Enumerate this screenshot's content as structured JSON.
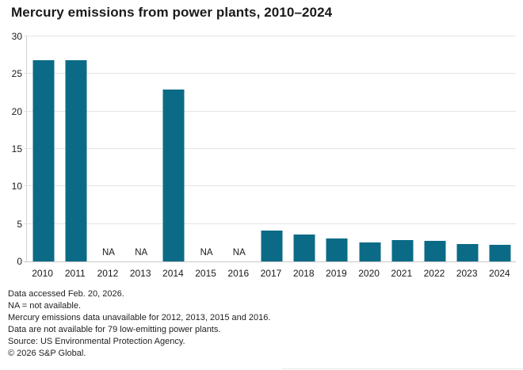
{
  "title": "Mercury emissions from power plants, 2010–2024",
  "colors": {
    "bar": "#0b6b86",
    "gridline": "#e4e4e4",
    "baseline": "#c9c9c9",
    "axis_line": "#d2d2d2",
    "text": "#1a1a1a"
  },
  "chart_data": {
    "type": "bar",
    "title": "Mercury emissions from power plants, 2010–2024",
    "categories": [
      "2010",
      "2011",
      "2012",
      "2013",
      "2014",
      "2015",
      "2016",
      "2017",
      "2018",
      "2019",
      "2020",
      "2021",
      "2022",
      "2023",
      "2024"
    ],
    "values": [
      26.8,
      26.8,
      null,
      null,
      22.9,
      null,
      null,
      4.1,
      3.6,
      3.1,
      2.5,
      2.9,
      2.8,
      2.3,
      2.2
    ],
    "na_label": "NA",
    "na_years": [
      "2012",
      "2013",
      "2015",
      "2016"
    ],
    "xlabel": "",
    "ylabel": "",
    "ylim": [
      0,
      30
    ],
    "yticks": [
      0,
      5,
      10,
      15,
      20,
      25,
      30
    ],
    "grid": true,
    "legend_position": "none"
  },
  "footnotes": [
    "Data accessed Feb. 20, 2026.",
    "NA = not available.",
    "Mercury emissions data unavailable for 2012, 2013, 2015 and 2016.",
    "Data are not available for 79 low-emitting power plants.",
    "Source: US Environmental Protection Agency.",
    "© 2026 S&P Global."
  ]
}
